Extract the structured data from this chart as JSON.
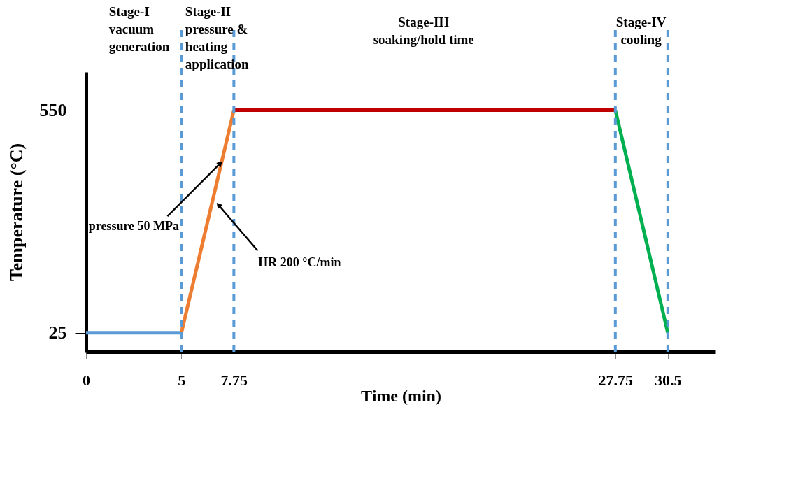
{
  "chart_data": {
    "type": "line",
    "xlabel": "Time (min)",
    "ylabel": "Temperature (°C)",
    "xlim": [
      0,
      33
    ],
    "xticks": [
      0,
      5,
      7.75,
      27.75,
      30.5
    ],
    "ylim": [
      -20,
      640
    ],
    "yticks": [
      25,
      550
    ],
    "grid": false,
    "line_style": "solid",
    "marker": "none",
    "series": [
      {
        "color": "#5b9bd5",
        "x": [
          0,
          5
        ],
        "values": [
          25,
          25
        ]
      },
      {
        "color": "#ed7d31",
        "x": [
          5,
          7.75
        ],
        "values": [
          25,
          550
        ]
      },
      {
        "color": "#c00000",
        "x": [
          7.75,
          27.75
        ],
        "values": [
          550,
          550
        ]
      },
      {
        "color": "#00b050",
        "x": [
          27.75,
          30.5
        ],
        "values": [
          550,
          25
        ]
      }
    ],
    "ref_lines": [
      {
        "axis": "x",
        "value": 5,
        "color": "#5b9bd5",
        "line_style": "dashed"
      },
      {
        "axis": "x",
        "value": 7.75,
        "color": "#5b9bd5",
        "line_style": "dashed"
      },
      {
        "axis": "x",
        "value": 27.75,
        "color": "#5b9bd5",
        "line_style": "dashed"
      },
      {
        "axis": "x",
        "value": 30.5,
        "color": "#5b9bd5",
        "line_style": "dashed"
      }
    ],
    "annotations": [
      "Stage-I\nvacuum\ngeneration",
      "Stage-II\npressure &\nheating\napplication",
      "Stage-III\nsoaking/hold time",
      "Stage-IV\ncooling",
      {
        "text": "pressure 50 MPa",
        "x": 7.2,
        "y": 432
      },
      {
        "text": "HR 200 °C/min",
        "x": 6.8,
        "y": 334
      }
    ]
  }
}
